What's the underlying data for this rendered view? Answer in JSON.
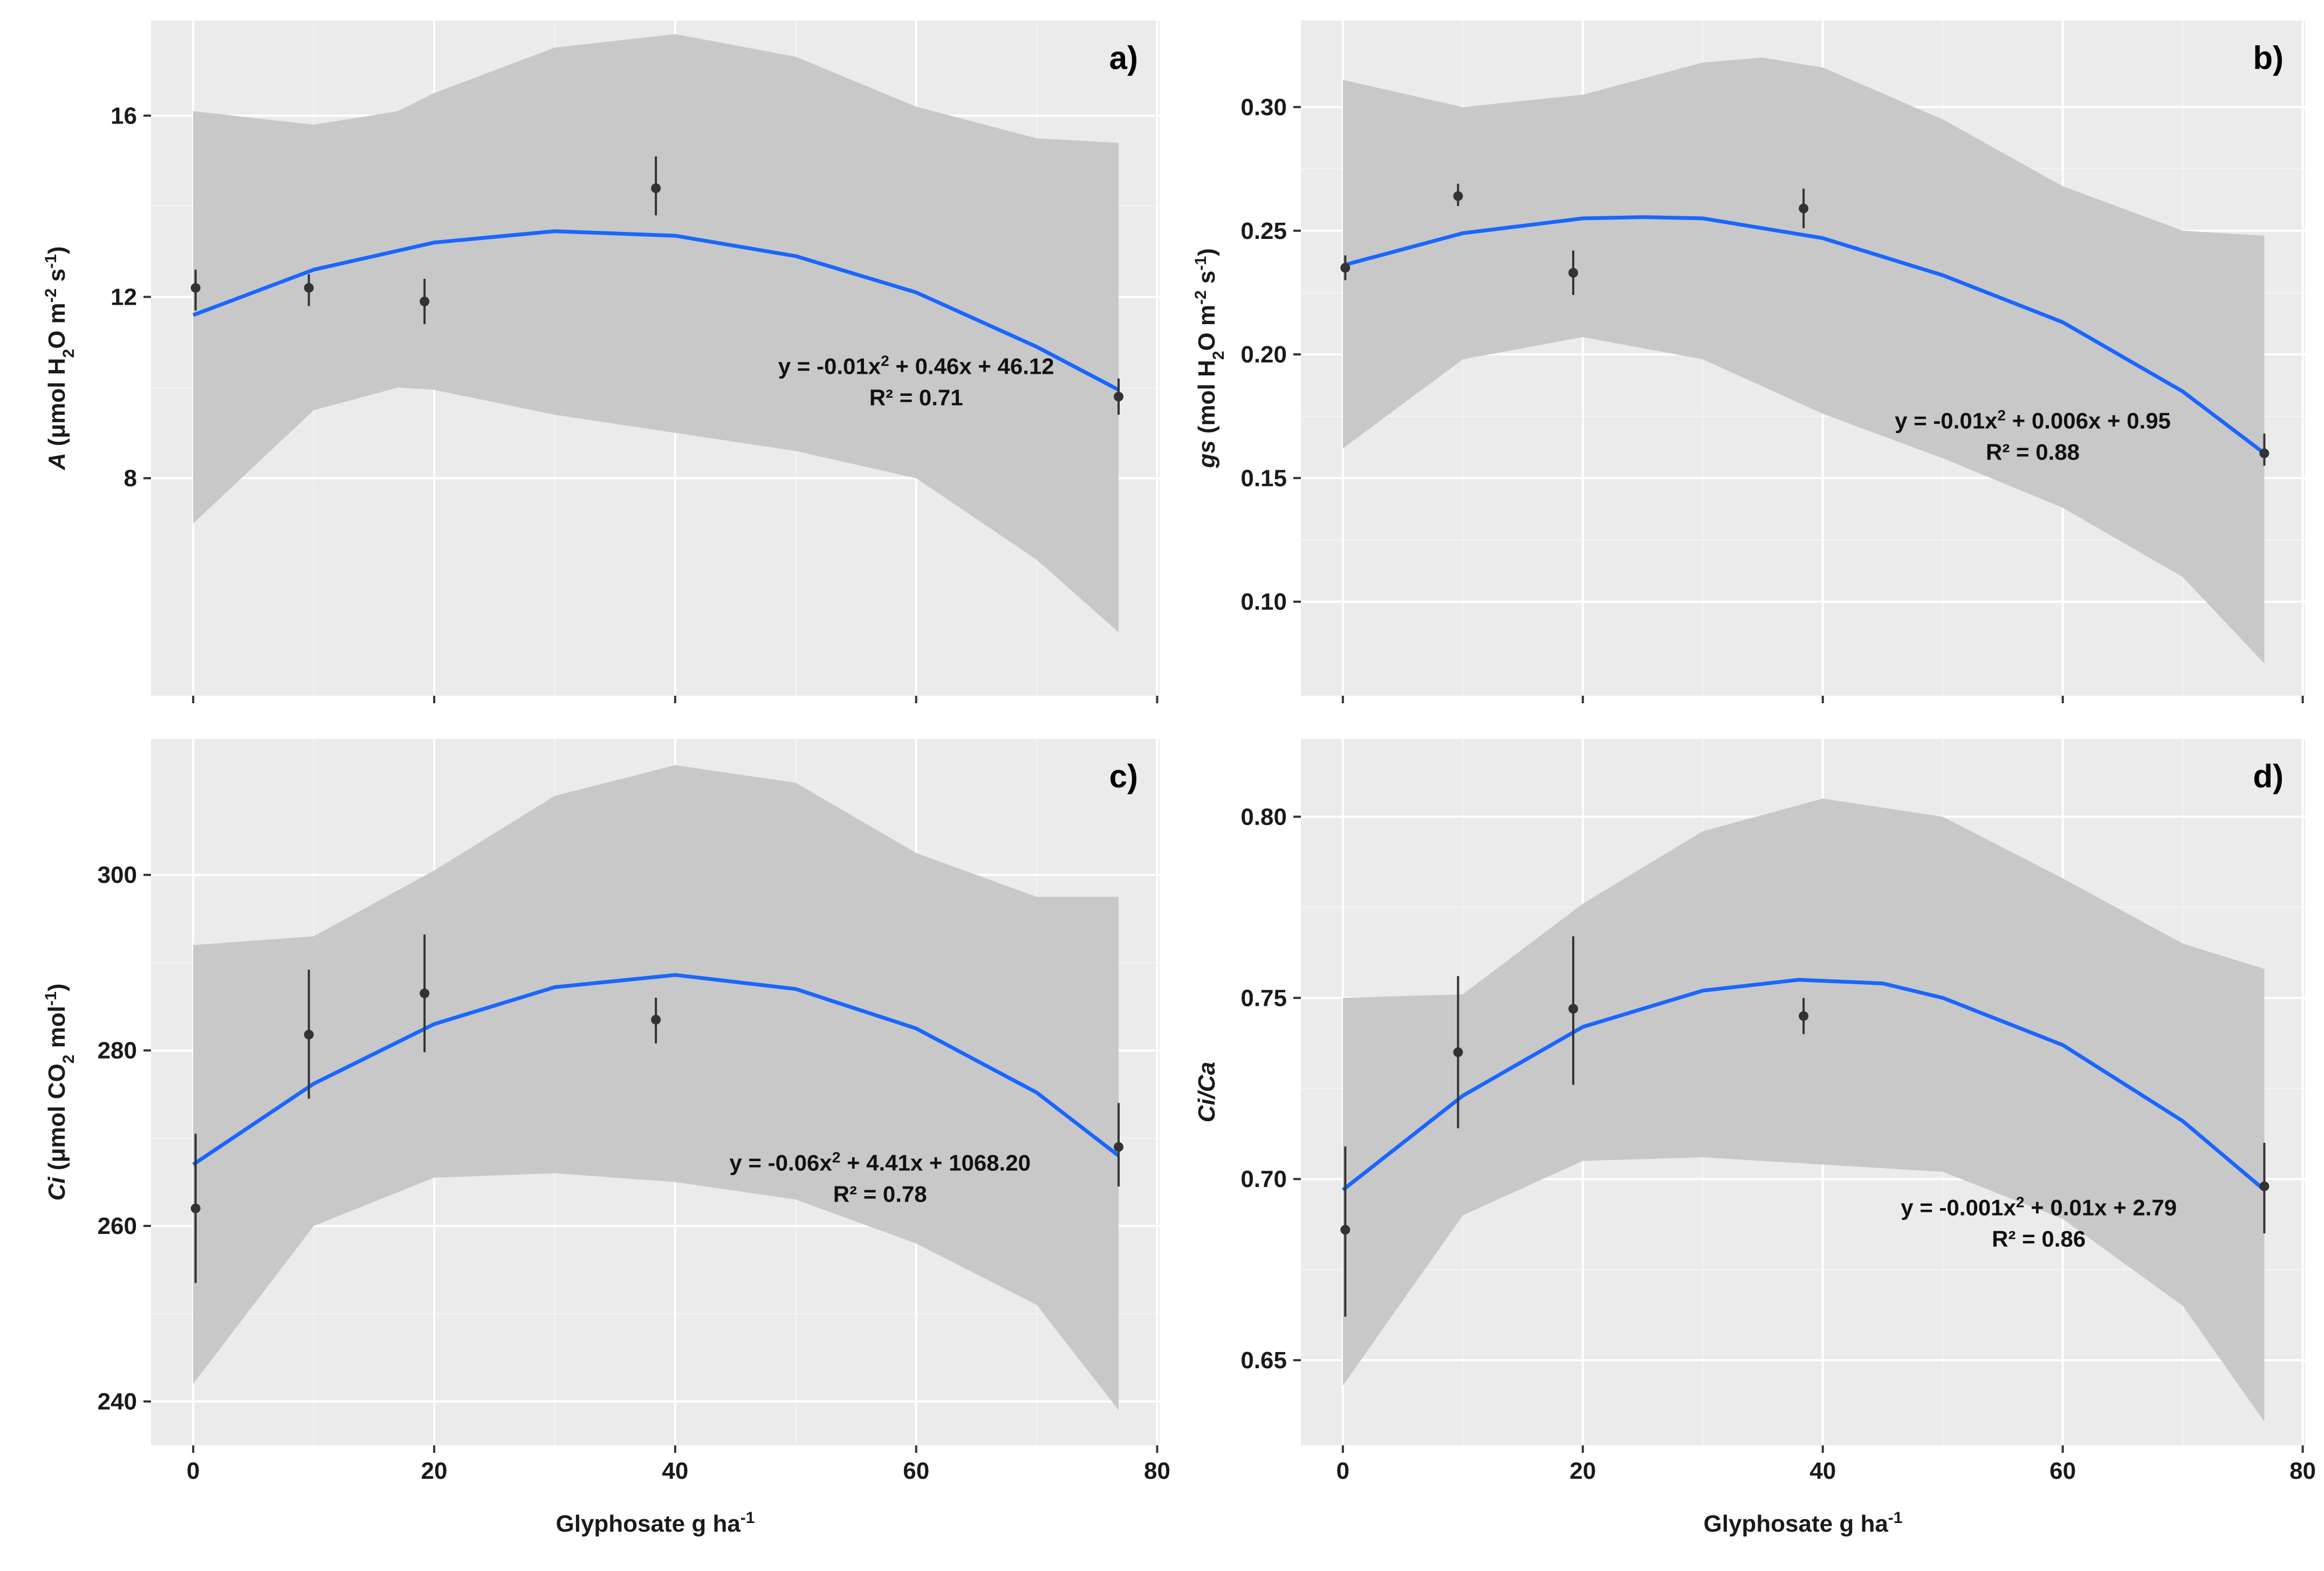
{
  "figure": {
    "colors": {
      "panel_background": "#ebebeb",
      "grid_major": "#ffffff",
      "grid_minor": "#f4f4f4",
      "ribbon": "#c8c8c8",
      "fit_line": "#1a66ff",
      "points": "#333333",
      "text": "#1a1a1a"
    }
  },
  "chart_data": [
    {
      "id": "a",
      "type": "scatter",
      "panel_label": "a)",
      "ylabel": "A (μmol H2O m-2 s-1)",
      "ylabel_parts": {
        "var": "A",
        "pre": " (μmol H",
        "sub": "2",
        "mid1": "O m",
        "sup1": "-2",
        "mid2": " s",
        "sup2": "-1",
        "post": ")"
      },
      "xlabel": "",
      "show_x_tick_labels": false,
      "xlim": [
        -3.5,
        80.2
      ],
      "ylim": [
        3.2,
        18.1
      ],
      "xticks": [
        0,
        20,
        40,
        60,
        80
      ],
      "yticks": [
        8,
        12,
        16
      ],
      "ytick_labels": [
        "8",
        "12",
        "16"
      ],
      "points": [
        {
          "x": 0.2,
          "y": 12.2,
          "lo": 11.7,
          "hi": 12.6
        },
        {
          "x": 9.6,
          "y": 12.2,
          "lo": 11.8,
          "hi": 12.5
        },
        {
          "x": 19.2,
          "y": 11.9,
          "lo": 11.4,
          "hi": 12.4
        },
        {
          "x": 38.4,
          "y": 14.4,
          "lo": 13.8,
          "hi": 15.1
        },
        {
          "x": 76.8,
          "y": 9.8,
          "lo": 9.4,
          "hi": 10.2
        }
      ],
      "fit": {
        "x": [
          0,
          10,
          20,
          30,
          40,
          50,
          60,
          70,
          76.8
        ],
        "y": [
          11.6,
          12.6,
          13.2,
          13.45,
          13.35,
          12.9,
          12.1,
          10.9,
          9.95
        ]
      },
      "ribbon": {
        "x": [
          0,
          10,
          17,
          20,
          30,
          40,
          50,
          60,
          70,
          76.8
        ],
        "upper": [
          16.1,
          15.8,
          16.1,
          16.5,
          17.5,
          17.8,
          17.3,
          16.2,
          15.5,
          15.4
        ],
        "lower": [
          7.0,
          9.5,
          10.0,
          9.95,
          9.4,
          9.0,
          8.6,
          8.0,
          6.2,
          4.6
        ]
      },
      "equation": "y = -0.01x2 + 0.46x + 46.12",
      "equation_parts": {
        "pre": "y = -0.01x",
        "sup": "2",
        "post": " + 0.46x + 46.12"
      },
      "r_squared": "R² = 0.71",
      "annotation_anchor": [
        60.0,
        10.3
      ]
    },
    {
      "id": "b",
      "type": "scatter",
      "panel_label": "b)",
      "ylabel": "gs (mol H2O m-2 s-1)",
      "ylabel_parts": {
        "var": "gs",
        "pre": " (mol H",
        "sub": "2",
        "mid1": "O m",
        "sup1": "-2",
        "mid2": " s",
        "sup2": "-1",
        "post": ")"
      },
      "xlabel": "",
      "show_x_tick_labels": false,
      "xlim": [
        -3.5,
        80.2
      ],
      "ylim": [
        0.062,
        0.335
      ],
      "xticks": [
        0,
        20,
        40,
        60,
        80
      ],
      "yticks": [
        0.1,
        0.15,
        0.2,
        0.25,
        0.3
      ],
      "ytick_labels": [
        "0.10",
        "0.15",
        "0.20",
        "0.25",
        "0.30"
      ],
      "points": [
        {
          "x": 0.2,
          "y": 0.235,
          "lo": 0.23,
          "hi": 0.24
        },
        {
          "x": 9.6,
          "y": 0.264,
          "lo": 0.26,
          "hi": 0.269
        },
        {
          "x": 19.2,
          "y": 0.233,
          "lo": 0.224,
          "hi": 0.242
        },
        {
          "x": 38.4,
          "y": 0.259,
          "lo": 0.251,
          "hi": 0.267
        },
        {
          "x": 76.8,
          "y": 0.16,
          "lo": 0.155,
          "hi": 0.168
        }
      ],
      "fit": {
        "x": [
          0,
          10,
          20,
          25,
          30,
          40,
          50,
          60,
          70,
          76.8
        ],
        "y": [
          0.236,
          0.249,
          0.255,
          0.2555,
          0.255,
          0.247,
          0.232,
          0.213,
          0.185,
          0.16
        ]
      },
      "ribbon": {
        "x": [
          0,
          10,
          20,
          30,
          35,
          40,
          50,
          60,
          70,
          76.8
        ],
        "upper": [
          0.311,
          0.3,
          0.305,
          0.318,
          0.32,
          0.316,
          0.295,
          0.268,
          0.25,
          0.248
        ],
        "lower": [
          0.162,
          0.198,
          0.207,
          0.198,
          0.187,
          0.176,
          0.158,
          0.138,
          0.11,
          0.075
        ]
      },
      "equation": "y = -0.01x2 + 0.006x + 0.95",
      "equation_parts": {
        "pre": "y = -0.01x",
        "sup": "2",
        "post": " + 0.006x + 0.95"
      },
      "r_squared": "R² = 0.88",
      "annotation_anchor": [
        57.5,
        0.17
      ]
    },
    {
      "id": "c",
      "type": "scatter",
      "panel_label": "c)",
      "ylabel": "Ci (μmol CO2 mol-1)",
      "ylabel_parts": {
        "var": "Ci",
        "pre": " (μmol CO",
        "sub": "2",
        "mid1": " mol",
        "sup1": "-1",
        "mid2": "",
        "sup2": "",
        "post": ")"
      },
      "xlabel": "Glyphosate g ha-1",
      "xlabel_parts": {
        "pre": "Glyphosate g ha",
        "sup": "-1"
      },
      "show_x_tick_labels": true,
      "xlim": [
        -3.5,
        80.2
      ],
      "ylim": [
        235.0,
        315.5
      ],
      "xticks": [
        0,
        20,
        40,
        60,
        80
      ],
      "xtick_labels": [
        "0",
        "20",
        "40",
        "60",
        "80"
      ],
      "yticks": [
        240,
        260,
        280,
        300
      ],
      "ytick_labels": [
        "240",
        "260",
        "280",
        "300"
      ],
      "points": [
        {
          "x": 0.2,
          "y": 262.0,
          "lo": 253.5,
          "hi": 270.5
        },
        {
          "x": 9.6,
          "y": 281.8,
          "lo": 274.5,
          "hi": 289.2
        },
        {
          "x": 19.2,
          "y": 286.5,
          "lo": 279.8,
          "hi": 293.2
        },
        {
          "x": 38.4,
          "y": 283.5,
          "lo": 280.8,
          "hi": 286.0
        },
        {
          "x": 76.8,
          "y": 269.0,
          "lo": 264.5,
          "hi": 274.0
        }
      ],
      "fit": {
        "x": [
          0,
          10,
          20,
          30,
          40,
          50,
          60,
          70,
          76.8
        ],
        "y": [
          267.0,
          276.2,
          283.0,
          287.2,
          288.6,
          287.0,
          282.5,
          275.2,
          268.0
        ]
      },
      "ribbon": {
        "x": [
          0,
          10,
          20,
          30,
          40,
          50,
          60,
          70,
          76.8
        ],
        "upper": [
          292.0,
          293.0,
          300.5,
          309.0,
          312.5,
          310.5,
          302.5,
          297.5,
          297.5
        ],
        "lower": [
          242.0,
          260.0,
          265.5,
          266.0,
          265.0,
          263.0,
          258.0,
          251.0,
          239.0
        ]
      },
      "equation": "y = -0.06x2 + 4.41x + 1068.20",
      "equation_parts": {
        "pre": "y = -0.06x",
        "sup": "2",
        "post": " + 4.41x + 1068.20"
      },
      "r_squared": "R² = 0.78",
      "annotation_anchor": [
        57.0,
        266.3
      ]
    },
    {
      "id": "d",
      "type": "scatter",
      "panel_label": "d)",
      "ylabel": "Ci/Ca",
      "ylabel_parts": {
        "var": "Ci/Ca",
        "pre": "",
        "sub": "",
        "mid1": "",
        "sup1": "",
        "mid2": "",
        "sup2": "",
        "post": ""
      },
      "xlabel": "Glyphosate g ha-1",
      "xlabel_parts": {
        "pre": "Glyphosate g ha",
        "sup": "-1"
      },
      "show_x_tick_labels": true,
      "xlim": [
        -3.5,
        80.2
      ],
      "ylim": [
        0.6265,
        0.8215
      ],
      "xticks": [
        0,
        20,
        40,
        60,
        80
      ],
      "xtick_labels": [
        "0",
        "20",
        "40",
        "60",
        "80"
      ],
      "yticks": [
        0.65,
        0.7,
        0.75,
        0.8
      ],
      "ytick_labels": [
        "0.65",
        "0.70",
        "0.75",
        "0.80"
      ],
      "points": [
        {
          "x": 0.2,
          "y": 0.686,
          "lo": 0.662,
          "hi": 0.709
        },
        {
          "x": 9.6,
          "y": 0.735,
          "lo": 0.714,
          "hi": 0.756
        },
        {
          "x": 19.2,
          "y": 0.747,
          "lo": 0.726,
          "hi": 0.767
        },
        {
          "x": 38.4,
          "y": 0.745,
          "lo": 0.74,
          "hi": 0.75
        },
        {
          "x": 76.8,
          "y": 0.698,
          "lo": 0.685,
          "hi": 0.71
        }
      ],
      "fit": {
        "x": [
          0,
          10,
          20,
          30,
          38,
          45,
          50,
          60,
          70,
          76.8
        ],
        "y": [
          0.697,
          0.723,
          0.742,
          0.752,
          0.755,
          0.754,
          0.75,
          0.737,
          0.716,
          0.697
        ]
      },
      "ribbon": {
        "x": [
          0,
          10,
          20,
          30,
          40,
          50,
          60,
          70,
          76.8
        ],
        "upper": [
          0.75,
          0.751,
          0.776,
          0.796,
          0.805,
          0.8,
          0.783,
          0.765,
          0.758
        ],
        "lower": [
          0.643,
          0.69,
          0.705,
          0.706,
          0.704,
          0.702,
          0.689,
          0.665,
          0.633
        ]
      },
      "equation": "y = -0.001x2 + 0.01x + 2.79",
      "equation_parts": {
        "pre": "y = -0.001x",
        "sup": "2",
        "post": " + 0.01x + 2.79"
      },
      "r_squared": "R² = 0.86",
      "annotation_anchor": [
        58.0,
        0.69
      ]
    }
  ]
}
